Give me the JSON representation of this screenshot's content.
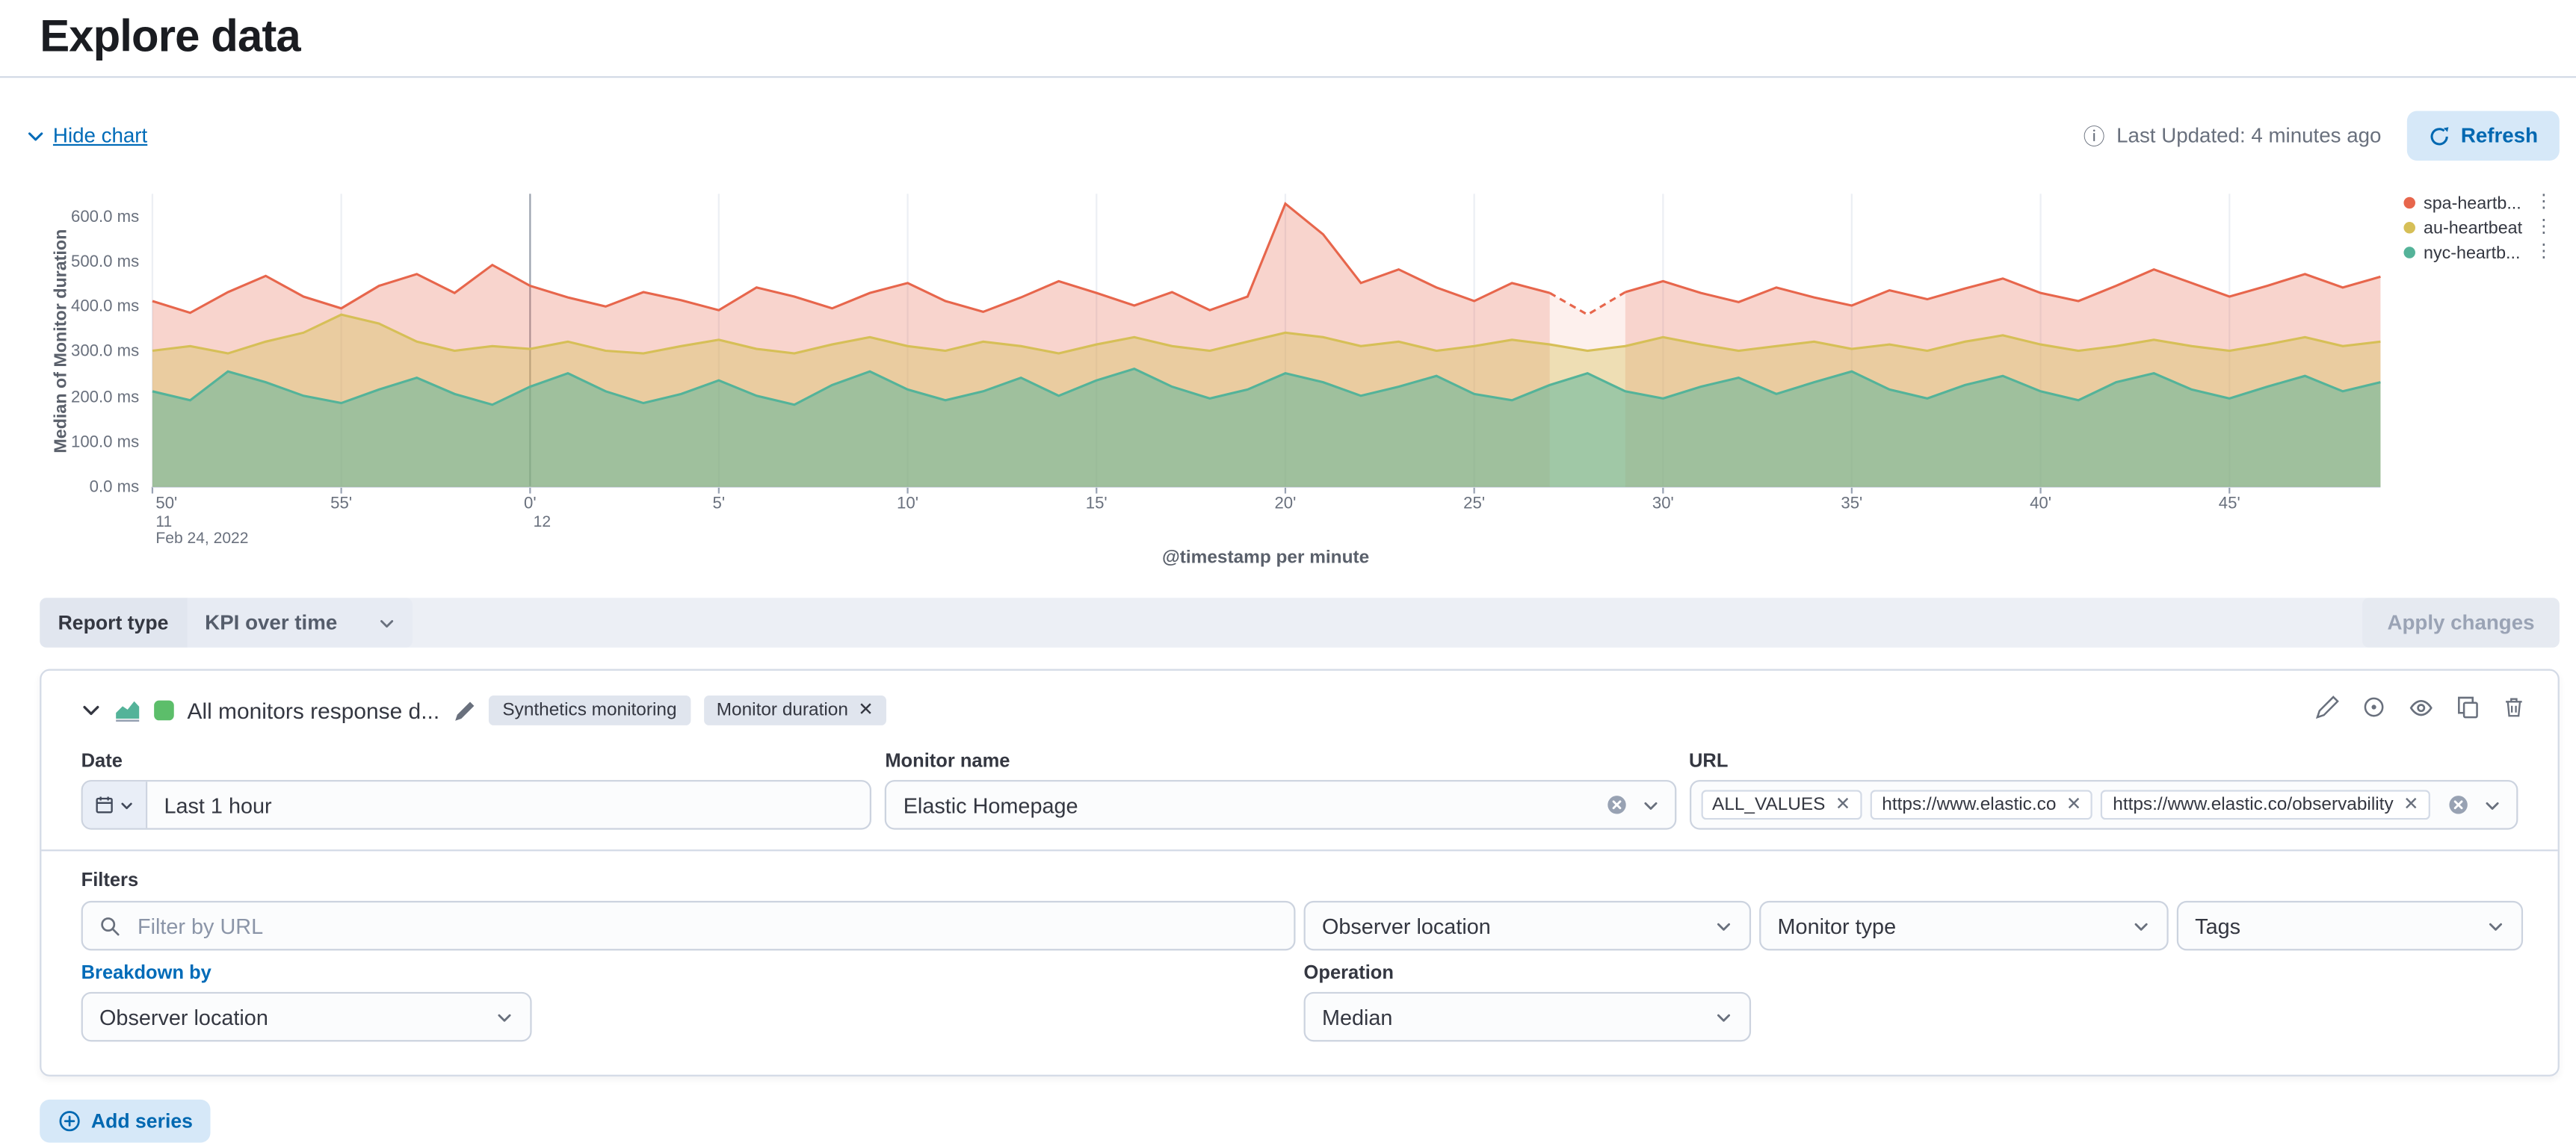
{
  "page": {
    "title": "Explore data"
  },
  "chart_toolbar": {
    "hide_chart": "Hide chart",
    "last_updated": "Last Updated: 4 minutes ago",
    "refresh": "Refresh"
  },
  "chart_data": {
    "type": "area",
    "xlabel": "@timestamp per minute",
    "ylabel": "Median of Monitor duration",
    "ylim": [
      0,
      650
    ],
    "unit": "ms",
    "grid": true,
    "legend_position": "right",
    "y_ticks": [
      {
        "label": "600.0 ms",
        "value": 600
      },
      {
        "label": "500.0 ms",
        "value": 500
      },
      {
        "label": "400.0 ms",
        "value": 400
      },
      {
        "label": "300.0 ms",
        "value": 300
      },
      {
        "label": "200.0 ms",
        "value": 200
      },
      {
        "label": "100.0 ms",
        "value": 100
      },
      {
        "label": "0.0 ms",
        "value": 0
      }
    ],
    "x_ticks": [
      {
        "label": "50'",
        "minute": 0
      },
      {
        "label": "55'",
        "minute": 5
      },
      {
        "label": "0'",
        "minute": 10,
        "major": true
      },
      {
        "label": "5'",
        "minute": 15
      },
      {
        "label": "10'",
        "minute": 20
      },
      {
        "label": "15'",
        "minute": 25
      },
      {
        "label": "20'",
        "minute": 30
      },
      {
        "label": "25'",
        "minute": 35
      },
      {
        "label": "30'",
        "minute": 40
      },
      {
        "label": "35'",
        "minute": 45
      },
      {
        "label": "40'",
        "minute": 50
      },
      {
        "label": "45'",
        "minute": 55
      }
    ],
    "x_context": {
      "hour_start_label": "11",
      "date_label": "Feb 24, 2022",
      "hour_boundary_label": "12",
      "hour_boundary_minute": 10
    },
    "series": [
      {
        "name": "spa-heartb...",
        "color": "#e7664c",
        "fill_opacity": 0.28,
        "gap": [
          37,
          39
        ],
        "values": [
          412,
          386,
          432,
          468,
          422,
          396,
          446,
          472,
          430,
          492,
          446,
          420,
          400,
          432,
          414,
          392,
          442,
          422,
          396,
          430,
          452,
          412,
          388,
          420,
          456,
          430,
          402,
          432,
          392,
          422,
          628,
          560,
          452,
          482,
          442,
          412,
          452,
          430,
          382,
          432,
          456,
          430,
          410,
          442,
          420,
          402,
          436,
          416,
          440,
          462,
          430,
          412,
          446,
          482,
          452,
          422,
          446,
          472,
          442,
          466
        ]
      },
      {
        "name": "au-heartbeat",
        "color": "#d6bf57",
        "fill_opacity": 0.38,
        "gap": null,
        "values": [
          302,
          312,
          296,
          322,
          342,
          382,
          362,
          322,
          302,
          312,
          306,
          322,
          302,
          296,
          312,
          326,
          306,
          296,
          316,
          332,
          312,
          302,
          322,
          312,
          296,
          316,
          332,
          312,
          302,
          322,
          342,
          332,
          312,
          322,
          302,
          312,
          326,
          316,
          302,
          312,
          332,
          316,
          302,
          312,
          322,
          306,
          316,
          302,
          322,
          336,
          316,
          302,
          312,
          326,
          312,
          302,
          316,
          332,
          312,
          322
        ]
      },
      {
        "name": "nyc-heartb...",
        "color": "#54b399",
        "fill_opacity": 0.5,
        "gap": null,
        "values": [
          212,
          192,
          256,
          232,
          202,
          186,
          216,
          242,
          206,
          182,
          222,
          252,
          212,
          186,
          206,
          236,
          202,
          182,
          226,
          256,
          216,
          192,
          212,
          242,
          202,
          236,
          262,
          222,
          196,
          216,
          252,
          232,
          202,
          222,
          246,
          206,
          192,
          226,
          252,
          212,
          196,
          222,
          242,
          206,
          232,
          256,
          216,
          196,
          226,
          246,
          212,
          192,
          232,
          252,
          216,
          196,
          222,
          246,
          212,
          232
        ]
      }
    ]
  },
  "report_bar": {
    "label": "Report type",
    "value": "KPI over time",
    "apply": "Apply changes"
  },
  "series_panel": {
    "title": "All monitors response d...",
    "color_swatch": "#5cbe6a",
    "badges": [
      {
        "label": "Synthetics monitoring",
        "removable": false
      },
      {
        "label": "Monitor duration",
        "removable": true
      }
    ],
    "fields": {
      "date": {
        "label": "Date",
        "value": "Last 1 hour"
      },
      "monitor_name": {
        "label": "Monitor name",
        "value": "Elastic Homepage"
      },
      "url": {
        "label": "URL",
        "tags": [
          "ALL_VALUES",
          "https://www.elastic.co",
          "https://www.elastic.co/observability"
        ]
      }
    },
    "filters": {
      "label": "Filters",
      "search_placeholder": "Filter by URL",
      "dropdowns": [
        "Observer location",
        "Monitor type",
        "Tags"
      ]
    },
    "breakdown": {
      "label": "Breakdown by",
      "value": "Observer location"
    },
    "operation": {
      "label": "Operation",
      "value": "Median"
    }
  },
  "add_series": "Add series"
}
